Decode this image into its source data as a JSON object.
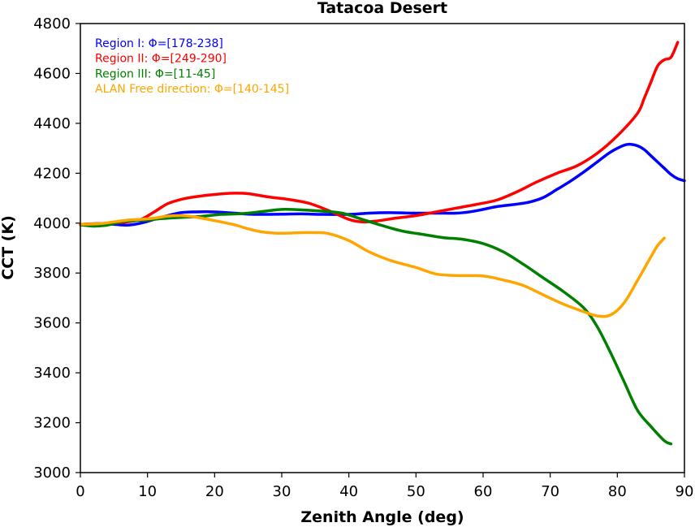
{
  "chart_data": {
    "type": "line",
    "title": "Tatacoa Desert",
    "xlabel": "Zenith Angle (deg)",
    "ylabel": "CCT (K)",
    "xlim": [
      0,
      90
    ],
    "ylim": [
      3000,
      4800
    ],
    "xticks": [
      0,
      10,
      20,
      30,
      40,
      50,
      60,
      70,
      80,
      90
    ],
    "yticks": [
      3000,
      3200,
      3400,
      3600,
      3800,
      4000,
      4200,
      4400,
      4600,
      4800
    ],
    "xtick_labels": [
      "0",
      "10",
      "20",
      "30",
      "40",
      "50",
      "60",
      "70",
      "80",
      "90"
    ],
    "ytick_labels": [
      "3000",
      "3200",
      "3400",
      "3600",
      "3800",
      "4000",
      "4200",
      "4400",
      "4600",
      "4800"
    ],
    "grid": false,
    "legend_position": "top-left",
    "series": [
      {
        "name": "Region I: Φ=[178-238]",
        "color": "#0000ff",
        "x": [
          0,
          3,
          5,
          7,
          9,
          11,
          13,
          15,
          17,
          20,
          23,
          25,
          27,
          30,
          33,
          36,
          40,
          43,
          46,
          50,
          53,
          56,
          58,
          60,
          62,
          65,
          67,
          69,
          71,
          73,
          75,
          77,
          79,
          81,
          82,
          83,
          84,
          85,
          86,
          87,
          88,
          89,
          90
        ],
        "values": [
          3995,
          3998,
          3995,
          3992,
          4000,
          4015,
          4030,
          4042,
          4045,
          4045,
          4040,
          4036,
          4035,
          4036,
          4037,
          4035,
          4035,
          4040,
          4042,
          4040,
          4040,
          4040,
          4045,
          4055,
          4066,
          4076,
          4085,
          4103,
          4135,
          4168,
          4205,
          4245,
          4285,
          4312,
          4316,
          4310,
          4295,
          4270,
          4245,
          4220,
          4195,
          4178,
          4170
        ]
      },
      {
        "name": "Region II: Φ=[249-290]",
        "color": "#ff0000",
        "x": [
          0,
          3,
          5,
          7,
          9,
          11,
          13,
          15,
          17,
          20,
          23,
          25,
          28,
          31,
          34,
          37,
          40,
          42,
          44,
          47,
          50,
          53,
          56,
          59,
          62,
          65,
          68,
          71,
          74,
          77,
          80,
          83,
          84,
          85,
          86,
          87,
          88,
          89
        ],
        "values": [
          3995,
          3998,
          4000,
          4005,
          4015,
          4045,
          4078,
          4095,
          4105,
          4115,
          4120,
          4118,
          4105,
          4095,
          4080,
          4050,
          4015,
          4005,
          4008,
          4020,
          4030,
          4045,
          4060,
          4075,
          4092,
          4125,
          4165,
          4200,
          4230,
          4280,
          4350,
          4440,
          4500,
          4565,
          4630,
          4655,
          4665,
          4725
        ]
      },
      {
        "name": "Region III: Φ=[11-45]",
        "color": "#008000",
        "x": [
          0,
          2,
          4,
          6,
          8,
          10,
          12,
          15,
          18,
          21,
          24,
          27,
          30,
          33,
          36,
          39,
          42,
          45,
          48,
          51,
          54,
          57,
          60,
          63,
          66,
          69,
          72,
          75,
          77,
          79,
          81,
          83,
          85,
          87,
          88
        ],
        "values": [
          3993,
          3988,
          3992,
          4005,
          4010,
          4012,
          4018,
          4023,
          4027,
          4035,
          4038,
          4046,
          4055,
          4053,
          4048,
          4040,
          4015,
          3990,
          3968,
          3955,
          3942,
          3935,
          3918,
          3885,
          3835,
          3780,
          3725,
          3660,
          3585,
          3480,
          3365,
          3250,
          3185,
          3128,
          3115
        ]
      },
      {
        "name": "ALAN Free direction: Φ=[140-145]",
        "color": "#ffa500",
        "x": [
          0,
          3,
          5,
          7,
          9,
          11,
          13,
          15,
          17,
          20,
          23,
          25,
          27,
          29,
          31,
          33,
          35,
          37,
          40,
          43,
          46,
          50,
          53,
          56,
          60,
          63,
          66,
          69,
          72,
          75,
          77,
          79,
          81,
          83,
          85,
          86,
          87
        ],
        "values": [
          3995,
          3998,
          4005,
          4012,
          4015,
          4020,
          4028,
          4030,
          4025,
          4010,
          3993,
          3977,
          3965,
          3960,
          3960,
          3962,
          3962,
          3958,
          3930,
          3885,
          3852,
          3822,
          3796,
          3790,
          3788,
          3772,
          3750,
          3712,
          3675,
          3645,
          3628,
          3632,
          3680,
          3770,
          3865,
          3910,
          3940
        ]
      }
    ]
  }
}
